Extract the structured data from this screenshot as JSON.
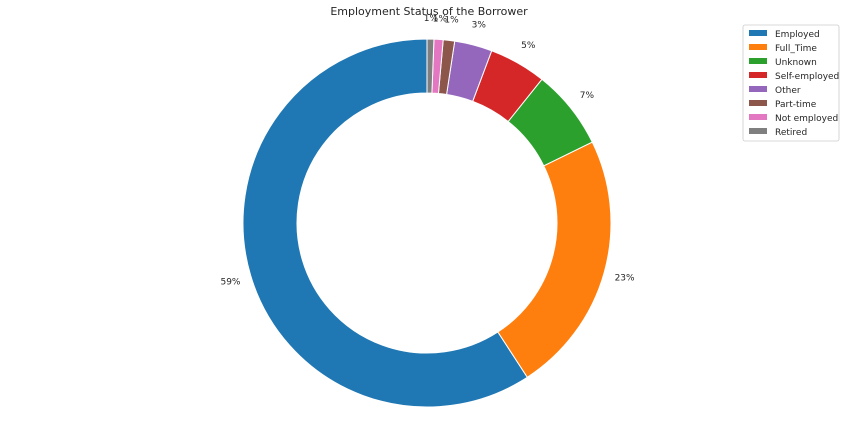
{
  "chart_data": {
    "type": "pie",
    "title": "Employment Status of the Borrower",
    "donut": true,
    "legend_position": "top-right",
    "slices": [
      {
        "label": "Employed",
        "value": 59.0,
        "pct_label": "59%",
        "color": "#1f77b4"
      },
      {
        "label": "Full_Time",
        "value": 23.0,
        "pct_label": "23%",
        "color": "#ff7f0e"
      },
      {
        "label": "Unknown",
        "value": 7.0,
        "pct_label": "7%",
        "color": "#2ca02c"
      },
      {
        "label": "Self-employed",
        "value": 5.0,
        "pct_label": "5%",
        "color": "#d62728"
      },
      {
        "label": "Other",
        "value": 3.3,
        "pct_label": "3%",
        "color": "#9467bd"
      },
      {
        "label": "Part-time",
        "value": 1.0,
        "pct_label": "1%",
        "color": "#8c564b"
      },
      {
        "label": "Not employed",
        "value": 0.8,
        "pct_label": "1%",
        "color": "#e377c2"
      },
      {
        "label": "Retired",
        "value": 0.6,
        "pct_label": "1%",
        "color": "#7f7f7f"
      }
    ]
  }
}
